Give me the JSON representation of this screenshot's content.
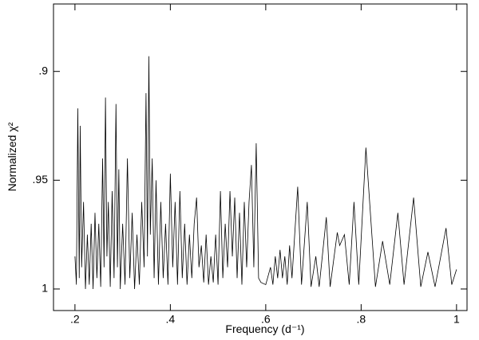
{
  "chart_data": {
    "type": "line",
    "xlabel": "Frequency (d⁻¹)",
    "ylabel": "Normalized χ²",
    "xlim": [
      0.155,
      1.022
    ],
    "ylim": [
      1.0099,
      0.869
    ],
    "xticks": [
      {
        "value": 0.2,
        "label": ".2"
      },
      {
        "value": 0.4,
        "label": ".4"
      },
      {
        "value": 0.6,
        "label": ".6"
      },
      {
        "value": 0.8,
        "label": ".8"
      },
      1
    ],
    "yticks": [
      {
        "value": 0.9,
        "label": ".9"
      },
      {
        "value": 0.95,
        "label": ".95"
      },
      1
    ],
    "color": "#000000",
    "x": [
      0.2,
      0.203,
      0.206,
      0.209,
      0.211,
      0.214,
      0.218,
      0.222,
      0.226,
      0.23,
      0.234,
      0.238,
      0.242,
      0.246,
      0.25,
      0.254,
      0.258,
      0.261,
      0.264,
      0.267,
      0.27,
      0.274,
      0.278,
      0.282,
      0.286,
      0.289,
      0.292,
      0.295,
      0.3,
      0.305,
      0.31,
      0.315,
      0.32,
      0.325,
      0.33,
      0.335,
      0.34,
      0.345,
      0.349,
      0.352,
      0.355,
      0.358,
      0.362,
      0.366,
      0.37,
      0.375,
      0.38,
      0.385,
      0.39,
      0.395,
      0.4,
      0.405,
      0.41,
      0.415,
      0.42,
      0.425,
      0.43,
      0.435,
      0.44,
      0.445,
      0.45,
      0.455,
      0.46,
      0.465,
      0.47,
      0.475,
      0.48,
      0.485,
      0.49,
      0.495,
      0.5,
      0.505,
      0.51,
      0.515,
      0.52,
      0.525,
      0.53,
      0.535,
      0.54,
      0.545,
      0.55,
      0.555,
      0.56,
      0.565,
      0.57,
      0.575,
      0.58,
      0.585,
      0.59,
      0.6,
      0.61,
      0.615,
      0.62,
      0.625,
      0.63,
      0.635,
      0.64,
      0.645,
      0.65,
      0.655,
      0.667,
      0.675,
      0.687,
      0.695,
      0.705,
      0.712,
      0.727,
      0.735,
      0.75,
      0.755,
      0.765,
      0.775,
      0.785,
      0.795,
      0.81,
      0.83,
      0.845,
      0.86,
      0.877,
      0.89,
      0.91,
      0.925,
      0.94,
      0.955,
      0.978,
      0.99,
      1.0
    ],
    "values": [
      0.985,
      0.998,
      0.917,
      0.995,
      0.925,
      0.99,
      0.96,
      1.0,
      0.975,
      0.998,
      0.97,
      1.0,
      0.965,
      0.995,
      0.97,
      0.999,
      0.94,
      0.99,
      0.912,
      0.985,
      0.96,
      0.999,
      0.955,
      0.995,
      0.915,
      0.99,
      0.945,
      1.0,
      0.97,
      0.998,
      0.94,
      0.995,
      0.965,
      1.0,
      0.975,
      0.998,
      0.96,
      0.99,
      0.91,
      0.985,
      0.893,
      0.975,
      0.94,
      0.995,
      0.95,
      0.998,
      0.96,
      0.995,
      0.97,
      0.998,
      0.947,
      0.99,
      0.96,
      0.998,
      0.955,
      0.995,
      0.97,
      0.998,
      0.975,
      0.995,
      0.97,
      0.958,
      0.99,
      0.98,
      0.997,
      0.975,
      0.998,
      0.985,
      0.997,
      0.975,
      0.998,
      0.955,
      0.995,
      0.97,
      0.99,
      0.955,
      0.985,
      0.958,
      0.995,
      0.965,
      0.998,
      0.96,
      0.99,
      0.96,
      0.943,
      0.99,
      0.933,
      0.995,
      0.997,
      0.998,
      0.99,
      0.998,
      0.985,
      0.995,
      0.982,
      0.995,
      0.985,
      0.998,
      0.98,
      0.995,
      0.953,
      0.998,
      0.96,
      0.999,
      0.985,
      0.999,
      0.967,
      0.999,
      0.974,
      0.98,
      0.975,
      0.998,
      0.96,
      0.998,
      0.935,
      0.999,
      0.978,
      0.998,
      0.965,
      0.998,
      0.958,
      0.999,
      0.983,
      0.999,
      0.972,
      0.998,
      0.991
    ]
  }
}
